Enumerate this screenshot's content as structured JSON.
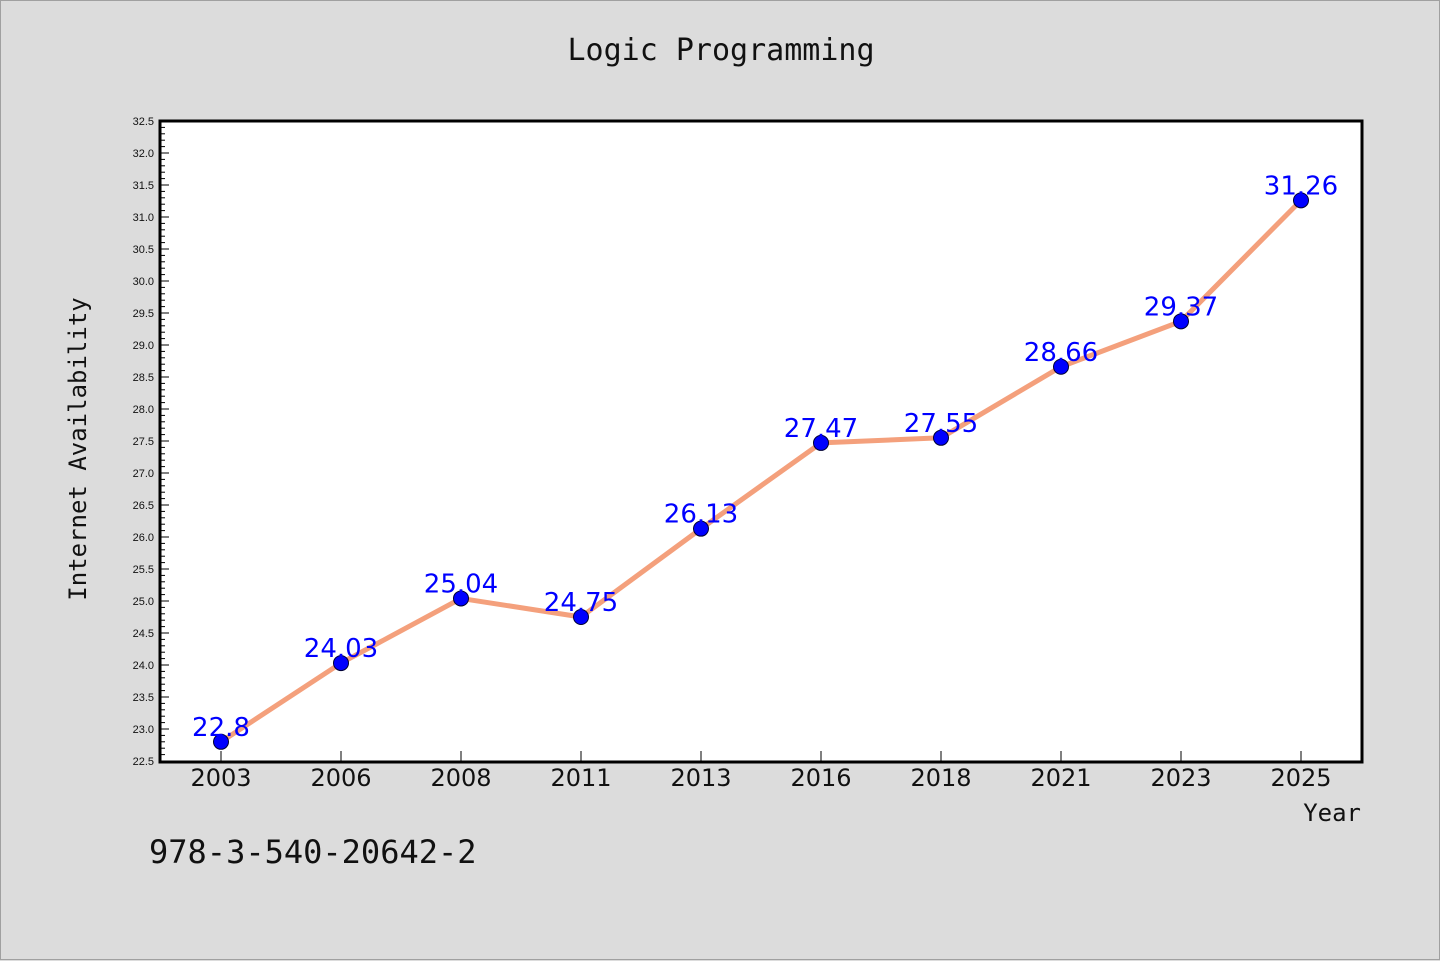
{
  "title": "Logic Programming",
  "caption": "978-3-540-20642-2",
  "colors": {
    "background": "#dcdcdc",
    "plot_background": "#ffffff",
    "line": "#f4a07c",
    "marker": "#0000ff",
    "data_label": "#0000ff"
  },
  "chart_data": {
    "type": "line",
    "title": "Logic Programming",
    "xlabel": "Year",
    "ylabel": "Internet Availability",
    "categories": [
      "2003",
      "2006",
      "2008",
      "2011",
      "2013",
      "2016",
      "2018",
      "2021",
      "2023",
      "2025"
    ],
    "series": [
      {
        "values": [
          22.8,
          24.03,
          25.04,
          24.75,
          26.13,
          27.47,
          27.55,
          28.66,
          29.37,
          31.26
        ],
        "labels": [
          "22.8",
          "24.03",
          "25.04",
          "24.75",
          "26.13",
          "27.47",
          "27.55",
          "28.66",
          "29.37",
          "31.26"
        ]
      }
    ],
    "ylim": [
      22.5,
      32.5
    ],
    "yticks": [
      "22.5",
      "23.0",
      "23.5",
      "24.0",
      "24.5",
      "25.0",
      "25.5",
      "26.0",
      "26.5",
      "27.0",
      "27.5",
      "28.0",
      "28.5",
      "29.0",
      "29.5",
      "30.0",
      "30.5",
      "31.0",
      "31.5",
      "32.0",
      "32.5"
    ],
    "grid": false,
    "legend": "none"
  }
}
